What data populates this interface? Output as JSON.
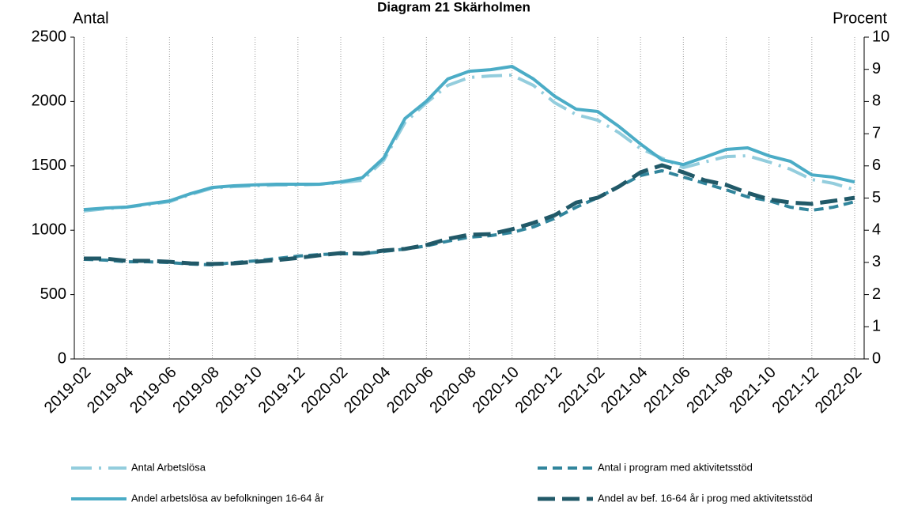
{
  "chart_data": {
    "type": "line",
    "title": "Diagram 21 Skärholmen",
    "y_label": "Antal",
    "y2_label": "Procent",
    "categories": [
      "2019-02",
      null,
      "2019-04",
      null,
      "2019-06",
      null,
      "2019-08",
      null,
      "2019-10",
      null,
      "2019-12",
      null,
      "2020-02",
      null,
      "2020-04",
      null,
      "2020-06",
      null,
      "2020-08",
      null,
      "2020-10",
      null,
      "2020-12",
      null,
      "2021-02",
      null,
      "2021-04",
      null,
      "2021-06",
      null,
      "2021-08",
      null,
      "2021-10",
      null,
      "2021-12",
      null,
      "2022-02"
    ],
    "ylim": [
      0,
      2500
    ],
    "yticks": [
      0,
      500,
      1000,
      1500,
      2000,
      2500
    ],
    "y2lim": [
      0,
      10
    ],
    "y2ticks": [
      0,
      1,
      2,
      3,
      4,
      5,
      6,
      7,
      8,
      9,
      10
    ],
    "grid": "x-dotted",
    "legend": "bottom",
    "series": [
      {
        "name": "Antal Arbetslösa",
        "color": "#93cddd",
        "style": "dashdot",
        "axis": "y",
        "values": [
          1149,
          1167,
          1179,
          1198,
          1222,
          1278,
          1327,
          1339,
          1345,
          1351,
          1351,
          1357,
          1370,
          1388,
          1542,
          1837,
          1990,
          2125,
          2187,
          2199,
          2205,
          2125,
          1990,
          1898,
          1855,
          1757,
          1634,
          1560,
          1486,
          1530,
          1572,
          1579,
          1530,
          1474,
          1394,
          1364,
          1314
        ]
      },
      {
        "name": "Andel arbetslösa av befolkningen 16-64 år",
        "color": "#4bacc6",
        "style": "solid",
        "axis": "y2",
        "values": [
          4.64,
          4.69,
          4.72,
          4.82,
          4.91,
          5.14,
          5.33,
          5.38,
          5.41,
          5.43,
          5.43,
          5.43,
          5.5,
          5.63,
          6.24,
          7.47,
          8.01,
          8.7,
          8.94,
          8.99,
          9.09,
          8.7,
          8.16,
          7.76,
          7.69,
          7.22,
          6.68,
          6.19,
          6.04,
          6.27,
          6.51,
          6.56,
          6.31,
          6.14,
          5.72,
          5.65,
          5.5
        ]
      },
      {
        "name": "Antal i program med aktivitetsstöd",
        "color": "#31859c",
        "style": "dashed",
        "axis": "y",
        "values": [
          774,
          768,
          755,
          755,
          749,
          737,
          731,
          749,
          762,
          780,
          799,
          811,
          817,
          817,
          835,
          854,
          878,
          915,
          946,
          958,
          983,
          1026,
          1093,
          1179,
          1253,
          1339,
          1425,
          1462,
          1413,
          1364,
          1314,
          1259,
          1229,
          1179,
          1155,
          1179,
          1222
        ]
      },
      {
        "name": "Andel av bef. 16-64 år i prog med aktivitetsstöd",
        "color": "#215968",
        "style": "longdash",
        "axis": "y2",
        "values": [
          3.12,
          3.12,
          3.05,
          3.05,
          3.02,
          2.97,
          2.95,
          2.97,
          3.02,
          3.07,
          3.14,
          3.22,
          3.29,
          3.27,
          3.37,
          3.42,
          3.54,
          3.73,
          3.86,
          3.88,
          4.03,
          4.23,
          4.47,
          4.86,
          5.01,
          5.36,
          5.8,
          6.02,
          5.8,
          5.55,
          5.41,
          5.16,
          4.96,
          4.86,
          4.82,
          4.91,
          5.01
        ]
      }
    ]
  }
}
